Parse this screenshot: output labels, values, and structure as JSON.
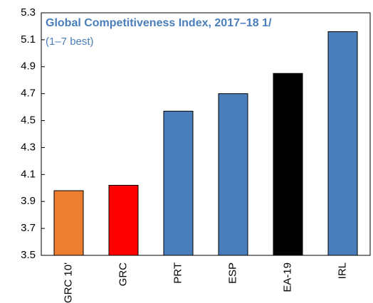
{
  "chart_data": {
    "type": "bar",
    "title": "Global Competitiveness Index, 2017–18 1/",
    "subtitle": "(1–7 best)",
    "categories": [
      "GRC 10'",
      "GRC",
      "PRT",
      "ESP",
      "EA-19",
      "IRL"
    ],
    "values": [
      3.98,
      4.02,
      4.57,
      4.7,
      4.85,
      5.16
    ],
    "colors": [
      "#ed7d31",
      "#ff0000",
      "#4a7ebb",
      "#4a7ebb",
      "#000000",
      "#4a7ebb"
    ],
    "ylim": [
      3.5,
      5.3
    ],
    "yticks": [
      3.5,
      3.7,
      3.9,
      4.1,
      4.3,
      4.5,
      4.7,
      4.9,
      5.1,
      5.3
    ],
    "grid": false
  }
}
